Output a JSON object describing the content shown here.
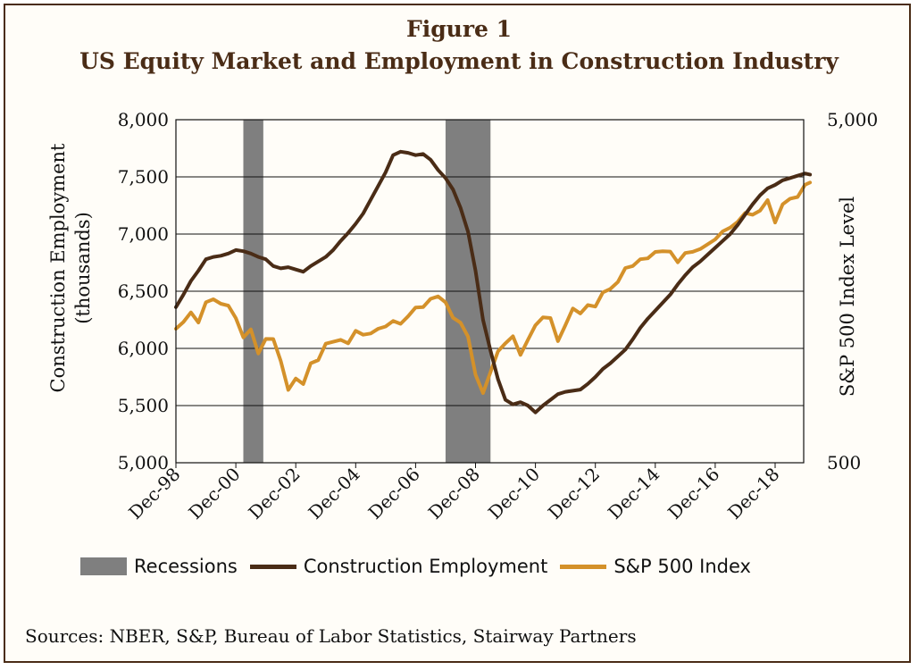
{
  "figure": {
    "label": "Figure 1",
    "title": "US Equity Market and Employment in Construction Industry"
  },
  "sources": "Sources: NBER, S&P, Bureau of Labor Statistics, Stairway Partners",
  "legend": {
    "recessions": "Recessions",
    "employment": "Construction Employment",
    "sp500": "S&P 500 Index"
  },
  "colors": {
    "employment": "#4a2c16",
    "sp500": "#d4912a",
    "recession": "#7f7f7f"
  },
  "chart_data": {
    "type": "line",
    "title": "US Equity Market and Employment in Construction Industry",
    "x_ticks": [
      "Dec-98",
      "Dec-00",
      "Dec-02",
      "Dec-04",
      "Dec-06",
      "Dec-08",
      "Dec-10",
      "Dec-12",
      "Dec-14",
      "Dec-16",
      "Dec-18"
    ],
    "y_left": {
      "label": "Construction Employment (thousands)",
      "label_lines": [
        "Construction Employment",
        "(thousands)"
      ],
      "ticks": [
        "5,000",
        "5,500",
        "6,000",
        "6,500",
        "7,000",
        "7,500",
        "8,000"
      ],
      "range": [
        5000,
        8000
      ]
    },
    "y_right": {
      "label": "S&P 500 Index Level",
      "ticks": [
        "500",
        "5,000"
      ],
      "range": [
        500,
        5000
      ],
      "scale": "log"
    },
    "grid": "horizontal",
    "recessions": [
      {
        "start": "2001-03",
        "end": "2001-11"
      },
      {
        "start": "2007-12",
        "end": "2009-06"
      }
    ],
    "series": [
      {
        "name": "Construction Employment",
        "axis": "left",
        "points": [
          [
            "1998-12",
            6360
          ],
          [
            "1999-03",
            6470
          ],
          [
            "1999-06",
            6590
          ],
          [
            "1999-09",
            6680
          ],
          [
            "1999-12",
            6780
          ],
          [
            "2000-03",
            6800
          ],
          [
            "2000-06",
            6810
          ],
          [
            "2000-09",
            6830
          ],
          [
            "2000-12",
            6860
          ],
          [
            "2001-03",
            6850
          ],
          [
            "2001-06",
            6830
          ],
          [
            "2001-09",
            6800
          ],
          [
            "2001-12",
            6780
          ],
          [
            "2002-03",
            6720
          ],
          [
            "2002-06",
            6700
          ],
          [
            "2002-09",
            6710
          ],
          [
            "2002-12",
            6690
          ],
          [
            "2003-03",
            6670
          ],
          [
            "2003-06",
            6720
          ],
          [
            "2003-09",
            6760
          ],
          [
            "2003-12",
            6800
          ],
          [
            "2004-03",
            6860
          ],
          [
            "2004-06",
            6940
          ],
          [
            "2004-09",
            7010
          ],
          [
            "2004-12",
            7090
          ],
          [
            "2005-03",
            7180
          ],
          [
            "2005-06",
            7300
          ],
          [
            "2005-09",
            7420
          ],
          [
            "2005-12",
            7540
          ],
          [
            "2006-03",
            7690
          ],
          [
            "2006-06",
            7720
          ],
          [
            "2006-09",
            7710
          ],
          [
            "2006-12",
            7690
          ],
          [
            "2007-03",
            7700
          ],
          [
            "2007-06",
            7650
          ],
          [
            "2007-09",
            7560
          ],
          [
            "2007-12",
            7490
          ],
          [
            "2008-03",
            7390
          ],
          [
            "2008-06",
            7230
          ],
          [
            "2008-09",
            7020
          ],
          [
            "2008-12",
            6680
          ],
          [
            "2009-03",
            6250
          ],
          [
            "2009-06",
            5980
          ],
          [
            "2009-09",
            5730
          ],
          [
            "2009-12",
            5550
          ],
          [
            "2010-03",
            5510
          ],
          [
            "2010-06",
            5530
          ],
          [
            "2010-09",
            5500
          ],
          [
            "2010-12",
            5440
          ],
          [
            "2011-03",
            5500
          ],
          [
            "2011-06",
            5550
          ],
          [
            "2011-09",
            5600
          ],
          [
            "2011-12",
            5620
          ],
          [
            "2012-03",
            5630
          ],
          [
            "2012-06",
            5640
          ],
          [
            "2012-09",
            5690
          ],
          [
            "2012-12",
            5750
          ],
          [
            "2013-03",
            5820
          ],
          [
            "2013-06",
            5870
          ],
          [
            "2013-09",
            5930
          ],
          [
            "2013-12",
            5990
          ],
          [
            "2014-03",
            6080
          ],
          [
            "2014-06",
            6180
          ],
          [
            "2014-09",
            6260
          ],
          [
            "2014-12",
            6330
          ],
          [
            "2015-03",
            6400
          ],
          [
            "2015-06",
            6470
          ],
          [
            "2015-09",
            6560
          ],
          [
            "2015-12",
            6640
          ],
          [
            "2016-03",
            6710
          ],
          [
            "2016-06",
            6760
          ],
          [
            "2016-09",
            6820
          ],
          [
            "2016-12",
            6880
          ],
          [
            "2017-03",
            6940
          ],
          [
            "2017-06",
            7000
          ],
          [
            "2017-09",
            7080
          ],
          [
            "2017-12",
            7170
          ],
          [
            "2018-03",
            7260
          ],
          [
            "2018-06",
            7340
          ],
          [
            "2018-09",
            7400
          ],
          [
            "2018-12",
            7430
          ],
          [
            "2019-03",
            7470
          ],
          [
            "2019-06",
            7490
          ],
          [
            "2019-09",
            7510
          ],
          [
            "2019-12",
            7530
          ],
          [
            "2020-02",
            7520
          ]
        ]
      },
      {
        "name": "S&P 500 Index",
        "axis": "right",
        "points": [
          [
            "1998-12",
            1229
          ],
          [
            "1999-03",
            1286
          ],
          [
            "1999-06",
            1372
          ],
          [
            "1999-09",
            1282
          ],
          [
            "1999-12",
            1469
          ],
          [
            "2000-03",
            1498
          ],
          [
            "2000-06",
            1454
          ],
          [
            "2000-09",
            1436
          ],
          [
            "2000-12",
            1320
          ],
          [
            "2001-03",
            1160
          ],
          [
            "2001-06",
            1224
          ],
          [
            "2001-09",
            1041
          ],
          [
            "2001-12",
            1148
          ],
          [
            "2002-03",
            1147
          ],
          [
            "2002-06",
            990
          ],
          [
            "2002-09",
            815
          ],
          [
            "2002-12",
            880
          ],
          [
            "2003-03",
            848
          ],
          [
            "2003-06",
            975
          ],
          [
            "2003-09",
            996
          ],
          [
            "2003-12",
            1112
          ],
          [
            "2004-03",
            1126
          ],
          [
            "2004-06",
            1141
          ],
          [
            "2004-09",
            1115
          ],
          [
            "2004-12",
            1212
          ],
          [
            "2005-03",
            1181
          ],
          [
            "2005-06",
            1191
          ],
          [
            "2005-09",
            1229
          ],
          [
            "2005-12",
            1248
          ],
          [
            "2006-03",
            1295
          ],
          [
            "2006-06",
            1270
          ],
          [
            "2006-09",
            1336
          ],
          [
            "2006-12",
            1418
          ],
          [
            "2007-03",
            1421
          ],
          [
            "2007-06",
            1503
          ],
          [
            "2007-09",
            1527
          ],
          [
            "2007-12",
            1468
          ],
          [
            "2008-03",
            1323
          ],
          [
            "2008-06",
            1280
          ],
          [
            "2008-09",
            1166
          ],
          [
            "2008-12",
            903
          ],
          [
            "2009-03",
            798
          ],
          [
            "2009-06",
            919
          ],
          [
            "2009-09",
            1057
          ],
          [
            "2009-12",
            1115
          ],
          [
            "2010-03",
            1169
          ],
          [
            "2010-06",
            1031
          ],
          [
            "2010-09",
            1141
          ],
          [
            "2010-12",
            1258
          ],
          [
            "2011-03",
            1326
          ],
          [
            "2011-06",
            1321
          ],
          [
            "2011-09",
            1131
          ],
          [
            "2011-12",
            1258
          ],
          [
            "2012-03",
            1408
          ],
          [
            "2012-06",
            1362
          ],
          [
            "2012-09",
            1441
          ],
          [
            "2012-12",
            1426
          ],
          [
            "2013-03",
            1569
          ],
          [
            "2013-06",
            1606
          ],
          [
            "2013-09",
            1682
          ],
          [
            "2013-12",
            1848
          ],
          [
            "2014-03",
            1872
          ],
          [
            "2014-06",
            1960
          ],
          [
            "2014-09",
            1972
          ],
          [
            "2014-12",
            2059
          ],
          [
            "2015-03",
            2068
          ],
          [
            "2015-06",
            2063
          ],
          [
            "2015-09",
            1920
          ],
          [
            "2015-12",
            2044
          ],
          [
            "2016-03",
            2060
          ],
          [
            "2016-06",
            2099
          ],
          [
            "2016-09",
            2168
          ],
          [
            "2016-12",
            2239
          ],
          [
            "2017-03",
            2363
          ],
          [
            "2017-06",
            2423
          ],
          [
            "2017-09",
            2519
          ],
          [
            "2017-12",
            2674
          ],
          [
            "2018-03",
            2641
          ],
          [
            "2018-06",
            2718
          ],
          [
            "2018-09",
            2914
          ],
          [
            "2018-12",
            2507
          ],
          [
            "2019-03",
            2834
          ],
          [
            "2019-06",
            2942
          ],
          [
            "2019-09",
            2977
          ],
          [
            "2019-12",
            3231
          ],
          [
            "2020-02",
            3280
          ]
        ]
      }
    ]
  }
}
